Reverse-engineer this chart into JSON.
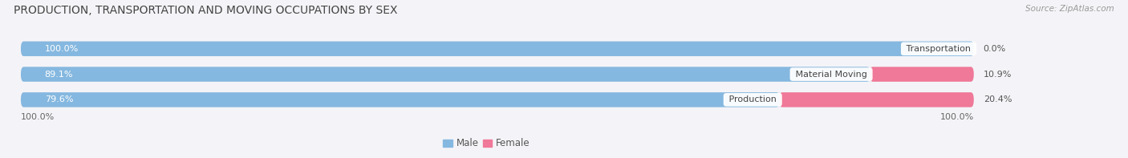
{
  "title": "PRODUCTION, TRANSPORTATION AND MOVING OCCUPATIONS BY SEX",
  "source": "Source: ZipAtlas.com",
  "categories": [
    "Transportation",
    "Material Moving",
    "Production"
  ],
  "male_values": [
    100.0,
    89.1,
    79.6
  ],
  "female_values": [
    0.0,
    10.9,
    20.4
  ],
  "male_color": "#85b8e0",
  "female_color": "#f07898",
  "bar_bg_color": "#e4e4ee",
  "male_label_color": "#ffffff",
  "outside_label_color": "#555555",
  "category_label_color": "#444444",
  "title_fontsize": 10.0,
  "source_fontsize": 7.5,
  "bar_label_fontsize": 8.0,
  "cat_label_fontsize": 8.0,
  "legend_fontsize": 8.5,
  "fig_bg_color": "#f4f4f8",
  "bar_height": 0.58,
  "x_left_label": "100.0%",
  "x_right_label": "100.0%"
}
